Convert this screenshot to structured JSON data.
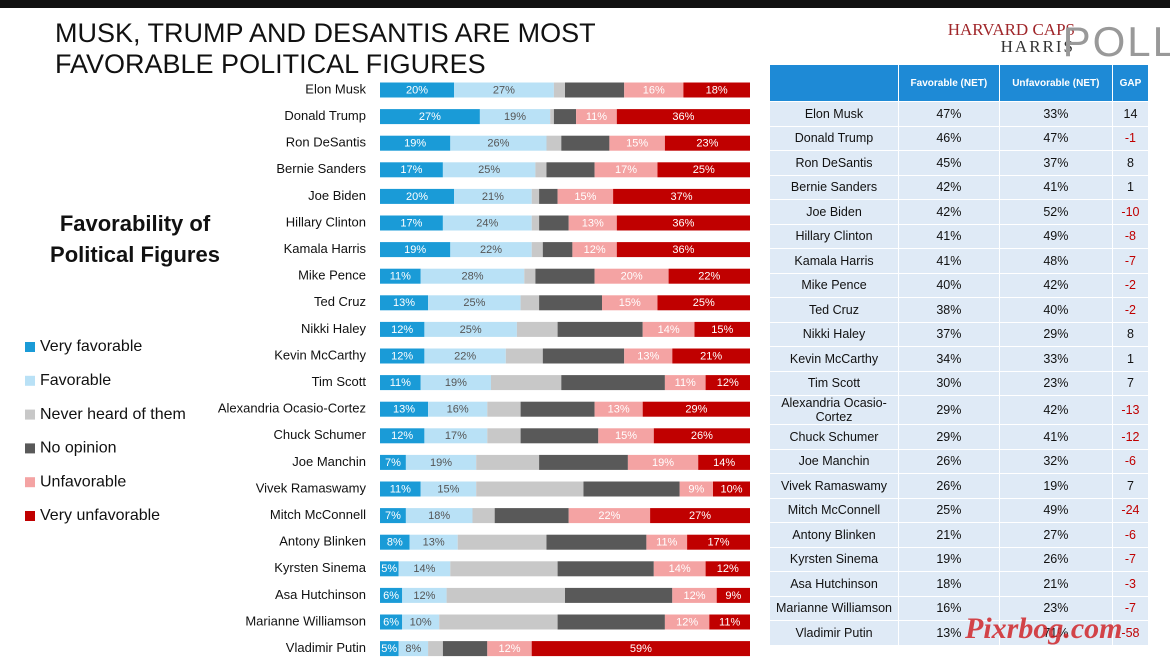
{
  "header": {
    "title": "MUSK, TRUMP AND DESANTIS ARE MOST FAVORABLE POLITICAL FIGURES",
    "logo": [
      "HARVARD CAPS",
      "HARRIS",
      "POLL"
    ]
  },
  "chart_data": {
    "type": "stacked-bar",
    "orientation": "horizontal",
    "title": "Favorability of Political Figures",
    "legend": "left",
    "xlim": [
      0,
      100
    ],
    "categories": [
      "Elon Musk",
      "Donald Trump",
      "Ron DeSantis",
      "Bernie Sanders",
      "Joe Biden",
      "Hillary Clinton",
      "Kamala Harris",
      "Mike Pence",
      "Ted Cruz",
      "Nikki Haley",
      "Kevin McCarthy",
      "Tim Scott",
      "Alexandria Ocasio-Cortez",
      "Chuck Schumer",
      "Joe Manchin",
      "Vivek Ramaswamy",
      "Mitch McConnell",
      "Antony Blinken",
      "Kyrsten Sinema",
      "Asa Hutchinson",
      "Marianne Williamson",
      "Vladimir Putin"
    ],
    "series": [
      {
        "name": "Very favorable",
        "color": "#1a9bd7",
        "values": [
          20,
          27,
          19,
          17,
          20,
          17,
          19,
          11,
          13,
          12,
          12,
          11,
          13,
          12,
          7,
          11,
          7,
          8,
          5,
          6,
          6,
          5
        ],
        "value_labels": [
          "20%",
          "27%",
          "19%",
          "17%",
          "20%",
          "17%",
          "19%",
          "11%",
          "13%",
          "12%",
          "12%",
          "11%",
          "13%",
          "12%",
          "7%",
          "11%",
          "7%",
          "8%",
          "5%",
          "6%",
          "6%",
          "5%"
        ]
      },
      {
        "name": "Favorable",
        "color": "#b9e1f6",
        "values": [
          27,
          19,
          26,
          25,
          21,
          24,
          22,
          28,
          25,
          25,
          22,
          19,
          16,
          17,
          19,
          15,
          18,
          13,
          14,
          12,
          10,
          8
        ],
        "value_labels": [
          "27%",
          "19%",
          "26%",
          "25%",
          "21%",
          "24%",
          "22%",
          "28%",
          "25%",
          "25%",
          "22%",
          "19%",
          "16%",
          "17%",
          "19%",
          "15%",
          "18%",
          "13%",
          "14%",
          "12%",
          "10%",
          "8%"
        ]
      },
      {
        "name": "Never heard of them",
        "color": "#c8c8c8",
        "values": [
          3,
          1,
          4,
          3,
          2,
          2,
          3,
          3,
          5,
          11,
          10,
          19,
          9,
          9,
          17,
          29,
          6,
          24,
          29,
          32,
          32,
          4
        ]
      },
      {
        "name": "No opinion",
        "color": "#595959",
        "values": [
          16,
          6,
          13,
          13,
          5,
          8,
          8,
          16,
          17,
          23,
          22,
          28,
          20,
          21,
          24,
          26,
          20,
          27,
          26,
          29,
          29,
          12
        ]
      },
      {
        "name": "Unfavorable",
        "color": "#f4a3a3",
        "values": [
          16,
          11,
          15,
          17,
          15,
          13,
          12,
          20,
          15,
          14,
          13,
          11,
          13,
          15,
          19,
          9,
          22,
          11,
          14,
          12,
          12,
          12
        ],
        "value_labels": [
          "16%",
          "11%",
          "15%",
          "17%",
          "15%",
          "13%",
          "12%",
          "20%",
          "15%",
          "14%",
          "13%",
          "11%",
          "13%",
          "15%",
          "19%",
          "9%",
          "22%",
          "11%",
          "14%",
          "12%",
          "12%",
          "12%"
        ]
      },
      {
        "name": "Very unfavorable",
        "color": "#c00000",
        "values": [
          18,
          36,
          23,
          25,
          37,
          36,
          36,
          22,
          25,
          15,
          21,
          12,
          29,
          26,
          14,
          10,
          27,
          17,
          12,
          9,
          11,
          59
        ],
        "value_labels": [
          "18%",
          "36%",
          "23%",
          "25%",
          "37%",
          "36%",
          "36%",
          "22%",
          "25%",
          "15%",
          "21%",
          "12%",
          "29%",
          "26%",
          "14%",
          "10%",
          "27%",
          "17%",
          "12%",
          "9%",
          "11%",
          "59%"
        ]
      }
    ]
  },
  "table": {
    "columns": [
      "Favorable (NET)",
      "Unfavorable (NET)",
      "GAP"
    ],
    "rows": [
      [
        "Elon Musk",
        "47%",
        "33%",
        14
      ],
      [
        "Donald Trump",
        "46%",
        "47%",
        -1
      ],
      [
        "Ron DeSantis",
        "45%",
        "37%",
        8
      ],
      [
        "Bernie Sanders",
        "42%",
        "41%",
        1
      ],
      [
        "Joe Biden",
        "42%",
        "52%",
        -10
      ],
      [
        "Hillary Clinton",
        "41%",
        "49%",
        -8
      ],
      [
        "Kamala Harris",
        "41%",
        "48%",
        -7
      ],
      [
        "Mike Pence",
        "40%",
        "42%",
        -2
      ],
      [
        "Ted Cruz",
        "38%",
        "40%",
        -2
      ],
      [
        "Nikki Haley",
        "37%",
        "29%",
        8
      ],
      [
        "Kevin McCarthy",
        "34%",
        "33%",
        1
      ],
      [
        "Tim Scott",
        "30%",
        "23%",
        7
      ],
      [
        "Alexandria Ocasio-Cortez",
        "29%",
        "42%",
        -13
      ],
      [
        "Chuck Schumer",
        "29%",
        "41%",
        -12
      ],
      [
        "Joe Manchin",
        "26%",
        "32%",
        -6
      ],
      [
        "Vivek Ramaswamy",
        "26%",
        "19%",
        7
      ],
      [
        "Mitch McConnell",
        "25%",
        "49%",
        -24
      ],
      [
        "Antony Blinken",
        "21%",
        "27%",
        -6
      ],
      [
        "Kyrsten Sinema",
        "19%",
        "26%",
        -7
      ],
      [
        "Asa Hutchinson",
        "18%",
        "21%",
        -3
      ],
      [
        "Marianne Williamson",
        "16%",
        "23%",
        -7
      ],
      [
        "Vladimir Putin",
        "13%",
        "71%",
        -58
      ]
    ]
  },
  "watermark": "Pixrbog.com"
}
